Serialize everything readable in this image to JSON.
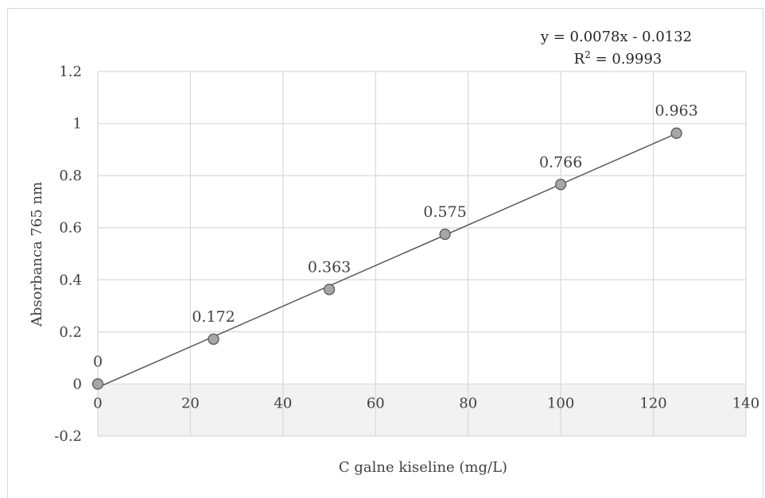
{
  "chart_data": {
    "type": "scatter",
    "xlabel": "C galne kiseline (mg/L)",
    "ylabel": "Absorbanca 765 nm",
    "xlim": [
      0,
      140
    ],
    "ylim": [
      -0.2,
      1.2
    ],
    "xticks": [
      "0",
      "20",
      "40",
      "60",
      "80",
      "100",
      "120",
      "140"
    ],
    "yticks": [
      "1.2",
      "1",
      "0.8",
      "0.6",
      "0.4",
      "0.2",
      "0",
      "-0.2"
    ],
    "grid": true,
    "legend": "none",
    "series": [
      {
        "x": [
          0,
          25,
          50,
          75,
          100,
          125
        ],
        "y": [
          0,
          0.172,
          0.363,
          0.575,
          0.766,
          0.963
        ],
        "labels": [
          "0",
          "0.172",
          "0.363",
          "0.575",
          "0.766",
          "0.963"
        ],
        "marker_color": "#a6a6a6",
        "marker_edge": "#595959"
      }
    ],
    "trendline": {
      "type": "linear",
      "slope": 0.0078,
      "intercept": -0.0132,
      "color": "#595959",
      "equation": "y = 0.0078x - 0.0132",
      "r2_prefix": "R",
      "r2_exp": "2",
      "r2_value": " = 0.9993"
    },
    "colors": {
      "gridline": "#d9d9d9",
      "plot_band": "#f2f2f2"
    }
  }
}
